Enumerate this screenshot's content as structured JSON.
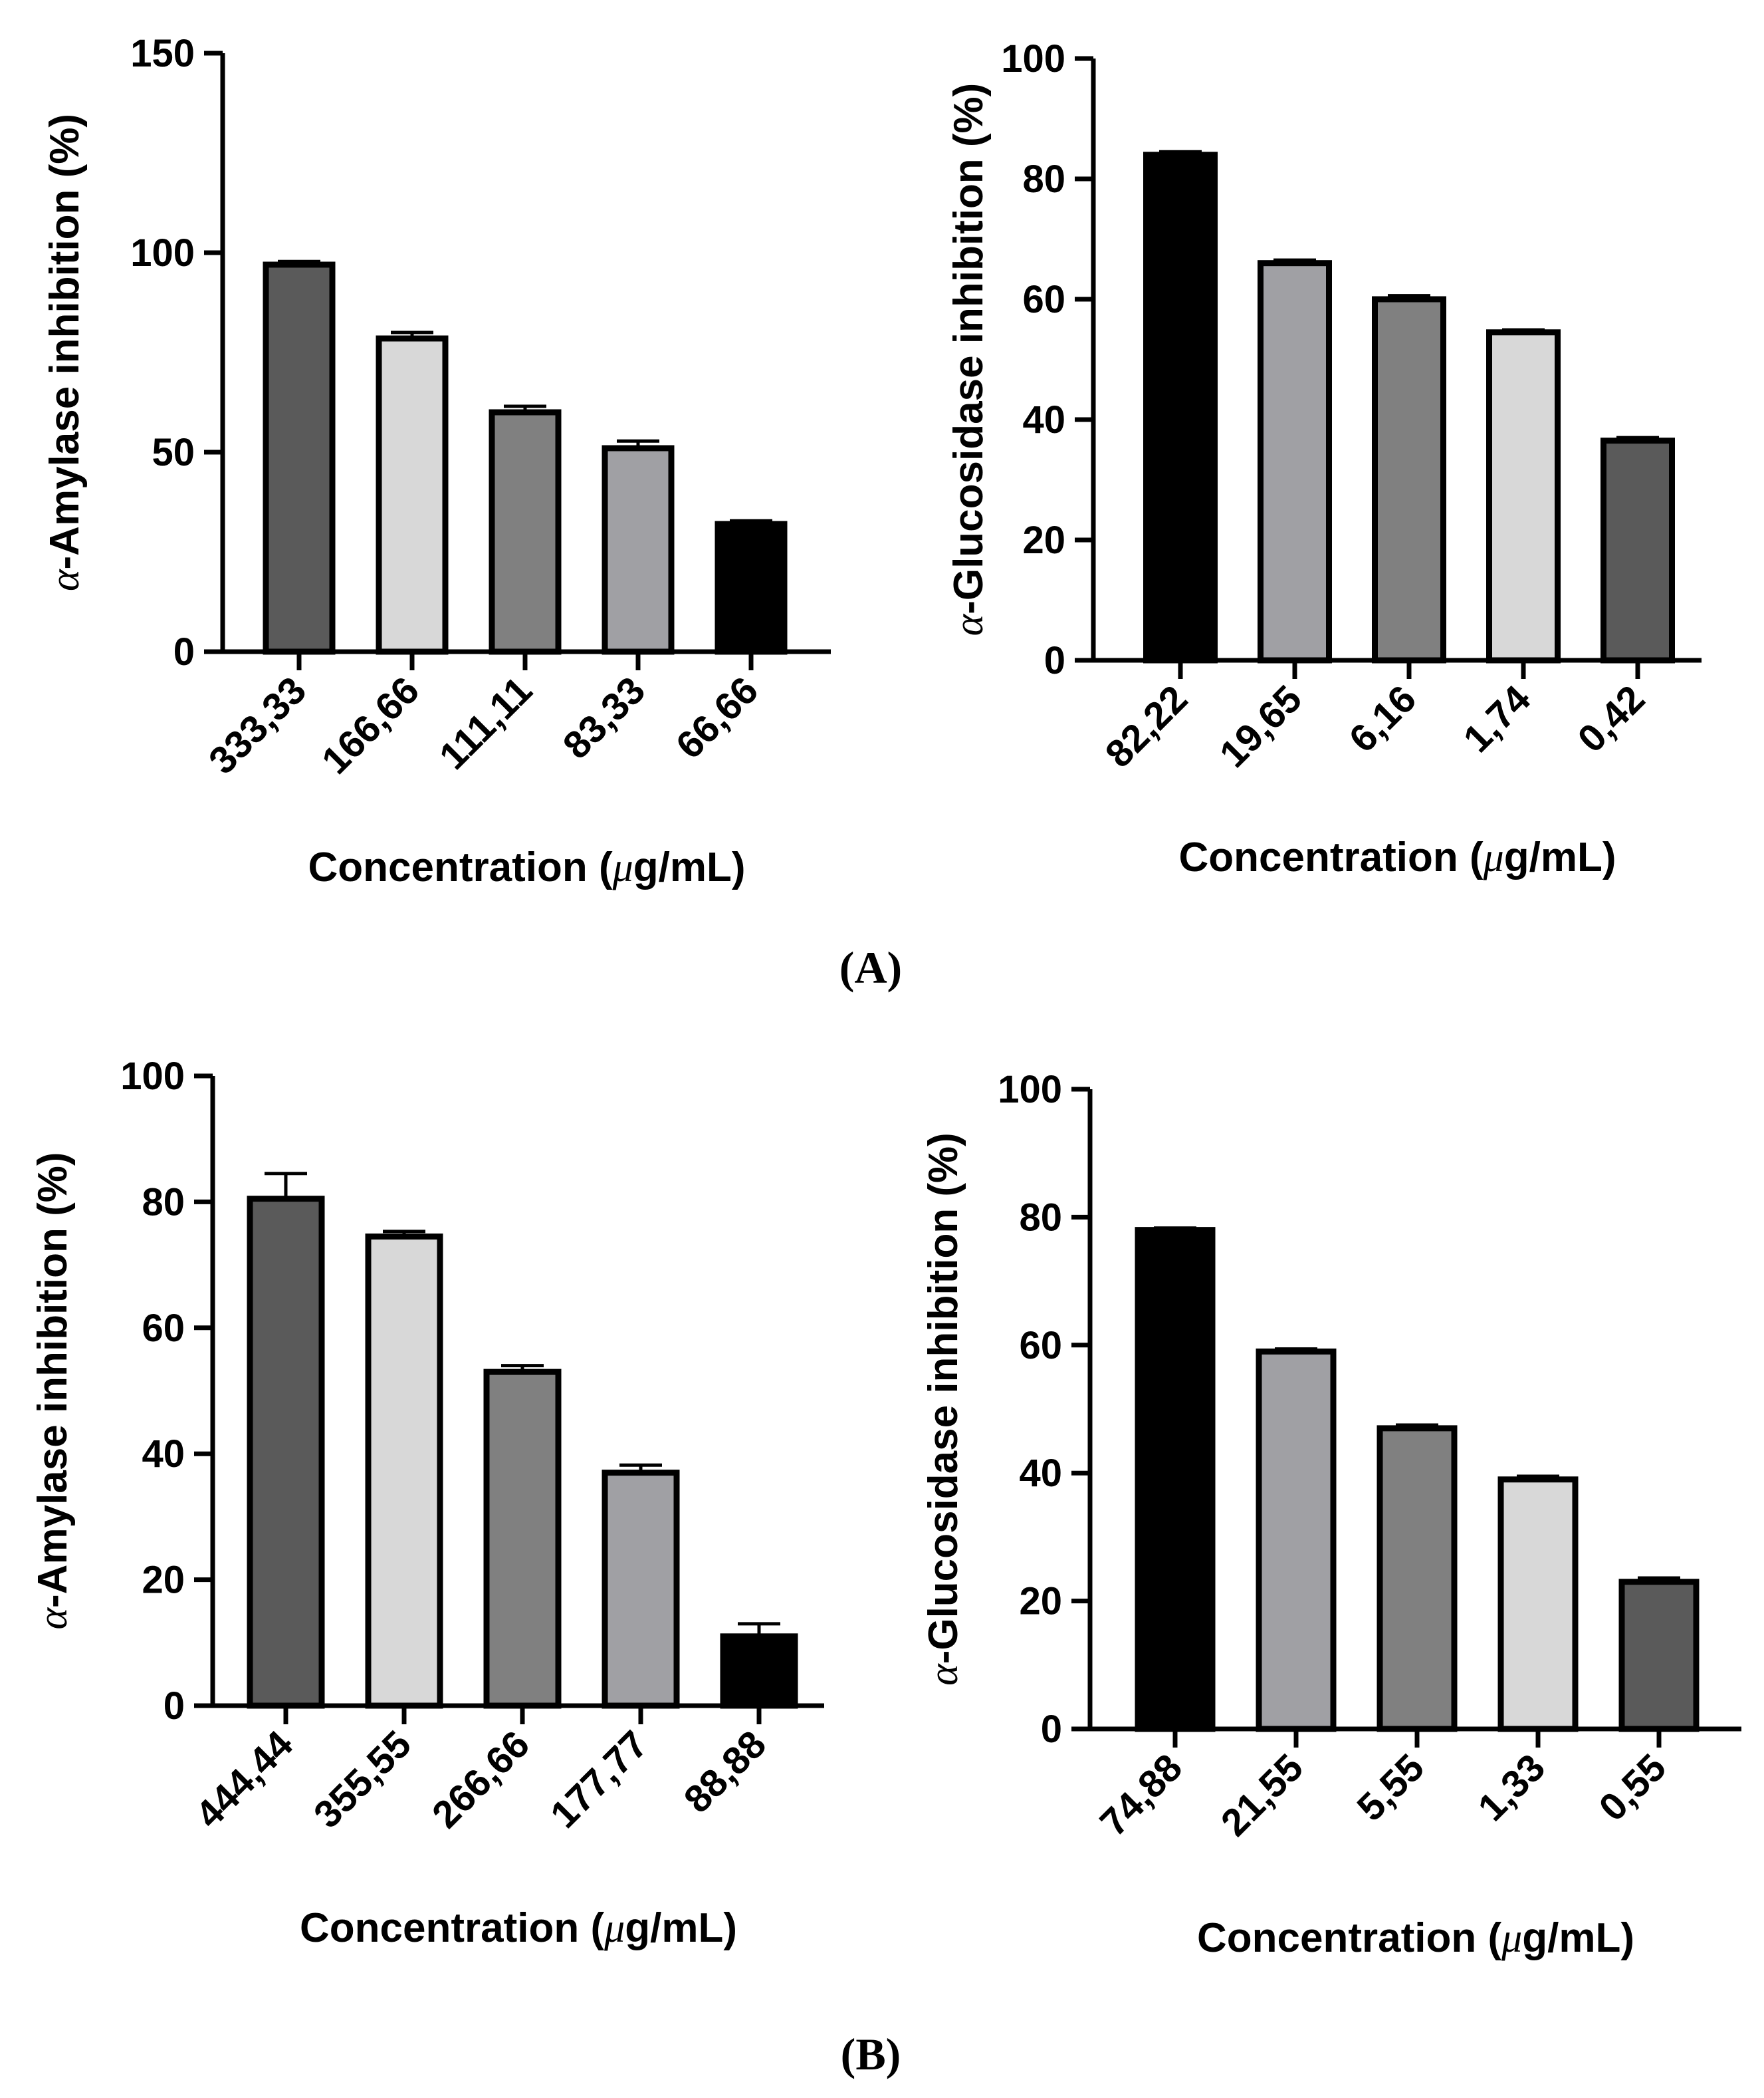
{
  "panels": [
    {
      "label": "(A)",
      "label_text": "A"
    },
    {
      "label": "(B)",
      "label_text": "B"
    }
  ],
  "chart_data": [
    {
      "id": "A-amylase",
      "panel": "A",
      "type": "bar",
      "title": "",
      "ylabel_prefix": "α",
      "ylabel": "-Amylase inhibition (%)",
      "xlabel_pre": "Concentration (",
      "xlabel_mu": "μ",
      "xlabel_post": "g/mL)",
      "ylim": [
        0,
        150
      ],
      "yticks": [
        0,
        50,
        100,
        150
      ],
      "categories": [
        "333,33",
        "166,66",
        "111,11",
        "83,33",
        "66,66"
      ],
      "values": [
        97,
        78.5,
        60,
        51,
        32
      ],
      "errors": [
        0.8,
        1.5,
        1.5,
        1.8,
        0.8
      ],
      "colors": [
        "#5a5a5a",
        "#d8d8d8",
        "#808080",
        "#a0a0a4",
        "#000000"
      ]
    },
    {
      "id": "A-glucosidase",
      "panel": "A",
      "type": "bar",
      "title": "",
      "ylabel_prefix": "α",
      "ylabel": "-Glucosidase inhibition (%)",
      "xlabel_pre": "Concentration (",
      "xlabel_mu": "μ",
      "xlabel_post": "g/mL)",
      "ylim": [
        0,
        100
      ],
      "yticks": [
        0,
        20,
        40,
        60,
        80,
        100
      ],
      "categories": [
        "82,22",
        "19,65",
        "6,16",
        "1,74",
        "0,42"
      ],
      "values": [
        84,
        66,
        60,
        54.5,
        36.5
      ],
      "errors": [
        0.5,
        0.5,
        0.6,
        0.4,
        0.5
      ],
      "colors": [
        "#000000",
        "#a0a0a4",
        "#808080",
        "#d8d8d8",
        "#5a5a5a"
      ]
    },
    {
      "id": "B-amylase",
      "panel": "B",
      "type": "bar",
      "title": "",
      "ylabel_prefix": "α",
      "ylabel": "-Amylase inhibition (%)",
      "xlabel_pre": "Concentration (",
      "xlabel_mu": "μ",
      "xlabel_post": "g/mL)",
      "ylim": [
        0,
        100
      ],
      "yticks": [
        0,
        20,
        40,
        60,
        80,
        100
      ],
      "categories": [
        "444,44",
        "355,55",
        "266,66",
        "177,77",
        "88,88"
      ],
      "values": [
        80.5,
        74.5,
        53,
        37,
        11
      ],
      "errors": [
        4,
        0.8,
        1,
        1.2,
        2
      ],
      "colors": [
        "#5a5a5a",
        "#d8d8d8",
        "#808080",
        "#a0a0a4",
        "#000000"
      ]
    },
    {
      "id": "B-glucosidase",
      "panel": "B",
      "type": "bar",
      "title": "",
      "ylabel_prefix": "α",
      "ylabel": "-Glucosidase inhibition (%)",
      "xlabel_pre": "Concentration (",
      "xlabel_mu": "μ",
      "xlabel_post": "g/mL)",
      "ylim": [
        0,
        100
      ],
      "yticks": [
        0,
        20,
        40,
        60,
        80,
        100
      ],
      "categories": [
        "74,88",
        "21,55",
        "5,55",
        "1,33",
        "0,55"
      ],
      "values": [
        78,
        59,
        47,
        39,
        23
      ],
      "errors": [
        0.3,
        0.4,
        0.5,
        0.5,
        0.6
      ],
      "colors": [
        "#000000",
        "#a0a0a4",
        "#808080",
        "#d8d8d8",
        "#5a5a5a"
      ]
    }
  ]
}
